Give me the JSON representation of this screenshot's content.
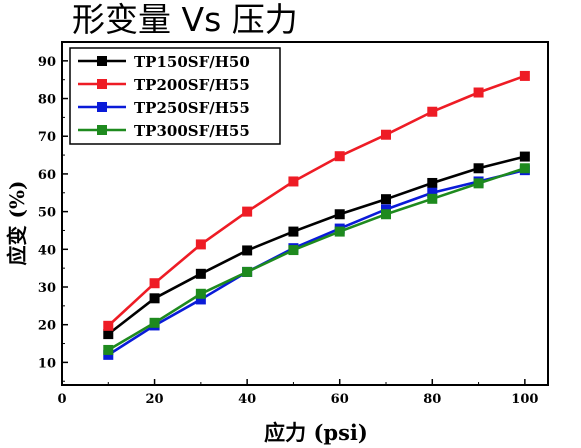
{
  "title": "形变量 Vs 压力",
  "chart_data": {
    "type": "line",
    "title": "形变量 Vs 压力",
    "xlabel": "应力 (psi)",
    "ylabel": "应变 (%)",
    "xlim": [
      0,
      105
    ],
    "ylim": [
      4,
      95
    ],
    "xticks": [
      0,
      20,
      40,
      60,
      80,
      100
    ],
    "yticks": [
      10,
      20,
      30,
      40,
      50,
      60,
      70,
      80,
      90
    ],
    "grid": false,
    "legend_position": "top-left",
    "x": [
      10,
      20,
      30,
      40,
      50,
      60,
      70,
      80,
      90,
      100
    ],
    "series": [
      {
        "name": "TP150SF/H50",
        "color": "#000000",
        "values": [
          17.5,
          27,
          33.5,
          39.7,
          44.7,
          49.3,
          53.3,
          57.6,
          61.5,
          64.6
        ]
      },
      {
        "name": "TP200SF/H55",
        "color": "#ee1c25",
        "values": [
          19.7,
          31,
          41.3,
          50,
          58,
          64.7,
          70.4,
          76.5,
          81.6,
          86
        ]
      },
      {
        "name": "TP250SF/H55",
        "color": "#0a1bd8",
        "values": [
          12,
          19.8,
          26.7,
          34,
          40.3,
          45.5,
          50.6,
          55,
          58,
          61
        ]
      },
      {
        "name": "TP300SF/H55",
        "color": "#1e8a1e",
        "values": [
          13.3,
          20.5,
          28.2,
          34,
          39.8,
          44.7,
          49.3,
          53.4,
          57.5,
          61.5
        ]
      }
    ]
  }
}
